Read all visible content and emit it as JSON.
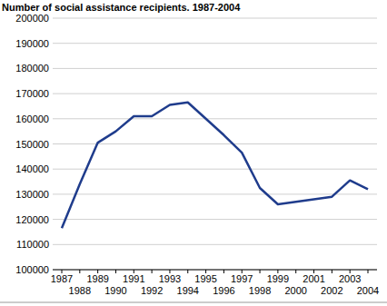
{
  "chart_data": {
    "type": "line",
    "title": "Number of social assistance recipients. 1987-2004",
    "categories": [
      "1987",
      "1988",
      "1989",
      "1990",
      "1991",
      "1992",
      "1993",
      "1994",
      "1995",
      "1996",
      "1997",
      "1998",
      "1999",
      "2000",
      "2001",
      "2002",
      "2003",
      "2004"
    ],
    "values": [
      116500,
      134000,
      150500,
      155000,
      161000,
      161000,
      165500,
      166500,
      160000,
      153500,
      146500,
      132500,
      126000,
      127000,
      128000,
      129000,
      135500,
      132000
    ],
    "color": "#1f3c8c",
    "ylim": [
      100000,
      200000
    ],
    "yticks": [
      100000,
      110000,
      120000,
      130000,
      140000,
      150000,
      160000,
      170000,
      180000,
      190000,
      200000
    ],
    "grid": true
  }
}
